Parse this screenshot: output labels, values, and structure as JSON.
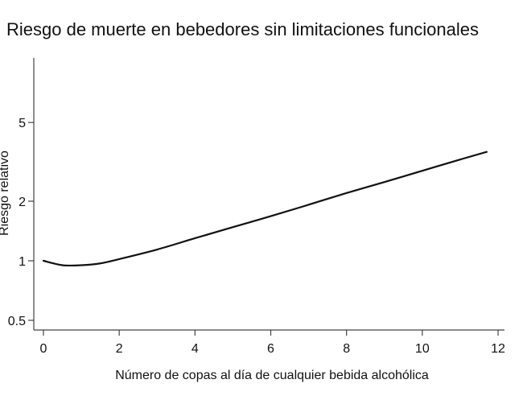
{
  "chart_data": {
    "type": "line",
    "title": "Riesgo de muerte en bebedores sin limitaciones funcionales",
    "xlabel": "Número de copas al día de cualquier bebida alcohólica",
    "ylabel": "Riesgo relativo",
    "x_scale": "linear",
    "y_scale": "log",
    "xlim": [
      0,
      12
    ],
    "ylim": [
      0.45,
      10
    ],
    "x_ticks": [
      0,
      2,
      4,
      6,
      8,
      10,
      12
    ],
    "x_tick_labels": [
      "0",
      "2",
      "4",
      "6",
      "8",
      "10",
      "12"
    ],
    "y_ticks": [
      0.5,
      1,
      2,
      5
    ],
    "y_tick_labels": [
      "0.5",
      "1",
      "2",
      "5"
    ],
    "grid": false,
    "legend": "none",
    "series": [
      {
        "x": [
          0,
          0.5,
          1,
          1.5,
          2,
          3,
          4,
          5,
          6,
          7,
          8,
          9,
          10,
          11,
          11.7
        ],
        "y": [
          1.0,
          0.95,
          0.95,
          0.97,
          1.02,
          1.14,
          1.3,
          1.48,
          1.68,
          1.92,
          2.2,
          2.5,
          2.85,
          3.25,
          3.55
        ]
      }
    ],
    "colors": {
      "line": "#111111",
      "axis": "#444444"
    }
  }
}
